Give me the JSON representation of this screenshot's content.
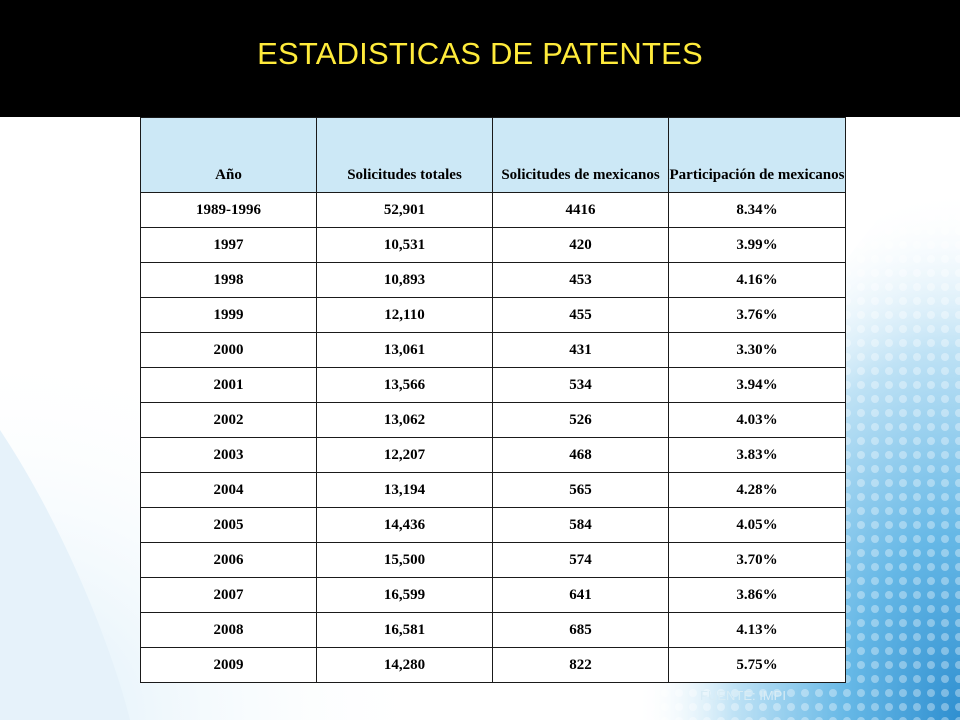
{
  "title": "ESTADISTICAS DE PATENTES",
  "colors": {
    "title_text": "#ffeb3b",
    "title_bar": "#000000",
    "header_bg": "#cce8f6",
    "accent_blue": "#4aa3d8"
  },
  "table": {
    "headers": [
      "Año",
      "Solicitudes totales",
      "Solicitudes de mexicanos",
      "Participación de mexicanos"
    ],
    "rows": [
      [
        "1989-1996",
        "52,901",
        "4416",
        "8.34%"
      ],
      [
        "1997",
        "10,531",
        "420",
        "3.99%"
      ],
      [
        "1998",
        "10,893",
        "453",
        "4.16%"
      ],
      [
        "1999",
        "12,110",
        "455",
        "3.76%"
      ],
      [
        "2000",
        "13,061",
        "431",
        "3.30%"
      ],
      [
        "2001",
        "13,566",
        "534",
        "3.94%"
      ],
      [
        "2002",
        "13,062",
        "526",
        "4.03%"
      ],
      [
        "2003",
        "12,207",
        "468",
        "3.83%"
      ],
      [
        "2004",
        "13,194",
        "565",
        "4.28%"
      ],
      [
        "2005",
        "14,436",
        "584",
        "4.05%"
      ],
      [
        "2006",
        "15,500",
        "574",
        "3.70%"
      ],
      [
        "2007",
        "16,599",
        "641",
        "3.86%"
      ],
      [
        "2008",
        "16,581",
        "685",
        "4.13%"
      ],
      [
        "2009",
        "14,280",
        "822",
        "5.75%"
      ]
    ]
  },
  "source": "FUENTE: IMPI"
}
